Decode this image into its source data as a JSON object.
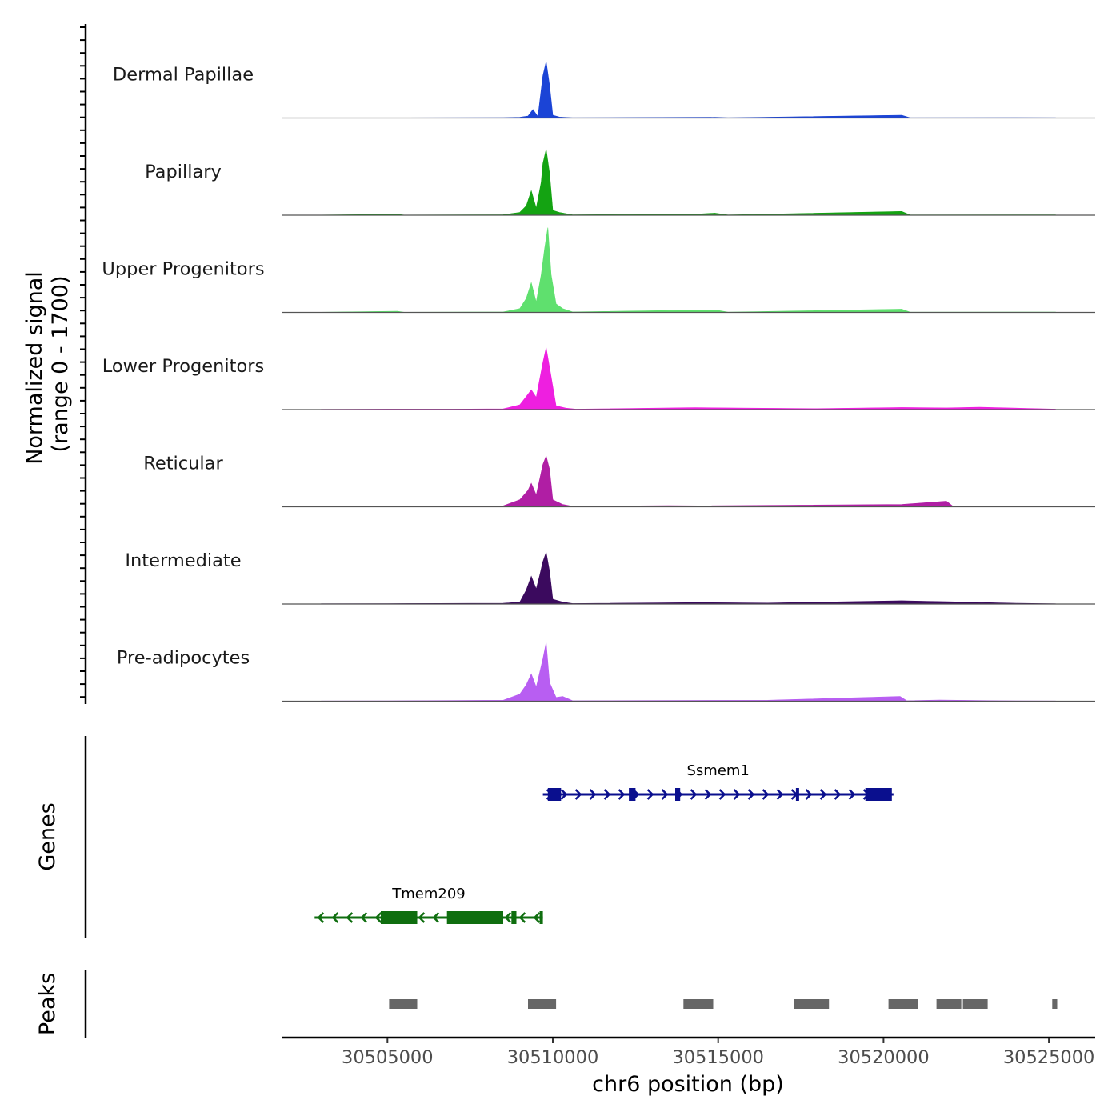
{
  "chart_data": {
    "type": "area",
    "title": "",
    "coverage": {
      "ylabel_line1": "Normalized signal",
      "ylabel_line2": "(range 0 - 1700)",
      "ylim": [
        0,
        1700
      ],
      "tracks": [
        {
          "name": "Dermal Papillae",
          "color": "#1b44d6",
          "points": [
            [
              30503000,
              2
            ],
            [
              30505000,
              3
            ],
            [
              30508500,
              8
            ],
            [
              30509000,
              15
            ],
            [
              30509250,
              40
            ],
            [
              30509400,
              180
            ],
            [
              30509550,
              30
            ],
            [
              30509700,
              900
            ],
            [
              30509800,
              1200
            ],
            [
              30509900,
              700
            ],
            [
              30510000,
              60
            ],
            [
              30510200,
              20
            ],
            [
              30510600,
              5
            ],
            [
              30514900,
              15
            ],
            [
              30515300,
              5
            ],
            [
              30520550,
              60
            ],
            [
              30520800,
              5
            ],
            [
              30524000,
              8
            ],
            [
              30525200,
              5
            ]
          ]
        },
        {
          "name": "Papillary",
          "color": "#14a312",
          "points": [
            [
              30503000,
              3
            ],
            [
              30505300,
              20
            ],
            [
              30505500,
              3
            ],
            [
              30508500,
              10
            ],
            [
              30509000,
              60
            ],
            [
              30509200,
              200
            ],
            [
              30509350,
              520
            ],
            [
              30509500,
              150
            ],
            [
              30509650,
              700
            ],
            [
              30509700,
              1100
            ],
            [
              30509800,
              1400
            ],
            [
              30509900,
              900
            ],
            [
              30510000,
              100
            ],
            [
              30510200,
              60
            ],
            [
              30510600,
              8
            ],
            [
              30514400,
              25
            ],
            [
              30514900,
              45
            ],
            [
              30515300,
              5
            ],
            [
              30520550,
              80
            ],
            [
              30520800,
              5
            ],
            [
              30525200,
              8
            ]
          ]
        },
        {
          "name": "Upper Progenitors",
          "color": "#5fe06e",
          "points": [
            [
              30503000,
              3
            ],
            [
              30505300,
              25
            ],
            [
              30505500,
              3
            ],
            [
              30508500,
              10
            ],
            [
              30509000,
              80
            ],
            [
              30509200,
              300
            ],
            [
              30509350,
              630
            ],
            [
              30509500,
              220
            ],
            [
              30509650,
              800
            ],
            [
              30509750,
              1350
            ],
            [
              30509850,
              1800
            ],
            [
              30509950,
              800
            ],
            [
              30510100,
              180
            ],
            [
              30510300,
              80
            ],
            [
              30510600,
              10
            ],
            [
              30514400,
              50
            ],
            [
              30514900,
              55
            ],
            [
              30515300,
              5
            ],
            [
              30520550,
              70
            ],
            [
              30520800,
              5
            ],
            [
              30525200,
              8
            ]
          ]
        },
        {
          "name": "Lower Progenitors",
          "color": "#ee1fe0",
          "points": [
            [
              30503000,
              5
            ],
            [
              30505000,
              10
            ],
            [
              30507000,
              10
            ],
            [
              30508500,
              15
            ],
            [
              30509000,
              100
            ],
            [
              30509200,
              280
            ],
            [
              30509350,
              420
            ],
            [
              30509500,
              260
            ],
            [
              30509700,
              1000
            ],
            [
              30509800,
              1320
            ],
            [
              30509950,
              700
            ],
            [
              30510100,
              80
            ],
            [
              30510400,
              30
            ],
            [
              30510700,
              10
            ],
            [
              30514300,
              40
            ],
            [
              30518000,
              20
            ],
            [
              30520550,
              45
            ],
            [
              30521900,
              35
            ],
            [
              30522900,
              50
            ],
            [
              30525200,
              10
            ]
          ]
        },
        {
          "name": "Reticular",
          "color": "#b01ea4",
          "points": [
            [
              30503000,
              5
            ],
            [
              30505000,
              8
            ],
            [
              30508500,
              20
            ],
            [
              30509000,
              150
            ],
            [
              30509250,
              350
            ],
            [
              30509350,
              500
            ],
            [
              30509500,
              250
            ],
            [
              30509700,
              900
            ],
            [
              30509800,
              1080
            ],
            [
              30509900,
              800
            ],
            [
              30510000,
              150
            ],
            [
              30510300,
              50
            ],
            [
              30510600,
              10
            ],
            [
              30513500,
              25
            ],
            [
              30514400,
              20
            ],
            [
              30520550,
              50
            ],
            [
              30521900,
              120
            ],
            [
              30522100,
              10
            ],
            [
              30524800,
              20
            ],
            [
              30525200,
              5
            ]
          ]
        },
        {
          "name": "Intermediate",
          "color": "#3b0a5e",
          "points": [
            [
              30503000,
              5
            ],
            [
              30505000,
              8
            ],
            [
              30508500,
              15
            ],
            [
              30509000,
              40
            ],
            [
              30509200,
              300
            ],
            [
              30509350,
              590
            ],
            [
              30509500,
              320
            ],
            [
              30509600,
              600
            ],
            [
              30509700,
              900
            ],
            [
              30509800,
              1100
            ],
            [
              30509900,
              700
            ],
            [
              30510000,
              100
            ],
            [
              30510300,
              40
            ],
            [
              30510600,
              10
            ],
            [
              30514400,
              30
            ],
            [
              30516500,
              20
            ],
            [
              30520550,
              70
            ],
            [
              30521900,
              50
            ],
            [
              30524000,
              15
            ],
            [
              30525200,
              5
            ]
          ]
        },
        {
          "name": "Pre-adipocytes",
          "color": "#b85ef2",
          "points": [
            [
              30503000,
              5
            ],
            [
              30505000,
              8
            ],
            [
              30508500,
              20
            ],
            [
              30509000,
              150
            ],
            [
              30509200,
              350
            ],
            [
              30509350,
              580
            ],
            [
              30509500,
              300
            ],
            [
              30509700,
              900
            ],
            [
              30509800,
              1250
            ],
            [
              30509900,
              400
            ],
            [
              30510100,
              80
            ],
            [
              30510300,
              100
            ],
            [
              30510600,
              10
            ],
            [
              30516500,
              20
            ],
            [
              30520500,
              100
            ],
            [
              30520700,
              10
            ],
            [
              30521700,
              25
            ],
            [
              30523500,
              10
            ],
            [
              30525200,
              5
            ]
          ]
        }
      ]
    },
    "genes": {
      "ylabel": "Genes",
      "items": [
        {
          "name": "Ssmem1",
          "strand": "+",
          "color": "#0a0f8e",
          "start": 30509700,
          "end": 30520300,
          "exons": [
            [
              30509850,
              30510250
            ],
            [
              30512300,
              30512500
            ],
            [
              30513700,
              30513850
            ],
            [
              30517350,
              30517430
            ],
            [
              30519450,
              30520250
            ]
          ]
        },
        {
          "name": "Tmem209",
          "strand": "-",
          "color": "#0f6e0f",
          "start": 30502800,
          "end": 30509700,
          "exons": [
            [
              30504800,
              30505900
            ],
            [
              30506800,
              30508500
            ],
            [
              30508750,
              30508900
            ],
            [
              30509600,
              30509700
            ]
          ]
        }
      ]
    },
    "peaks": {
      "ylabel": "Peaks",
      "color": "#666666",
      "regions": [
        [
          30505050,
          30505900
        ],
        [
          30509250,
          30510100
        ],
        [
          30513950,
          30514850
        ],
        [
          30517300,
          30518350
        ],
        [
          30520150,
          30521050
        ],
        [
          30521600,
          30522350
        ],
        [
          30522400,
          30523150
        ],
        [
          30525100,
          30525250
        ]
      ]
    },
    "x": {
      "xlabel": "chr6 position (bp)",
      "xlim": [
        30501800,
        30526400
      ],
      "ticks": [
        30505000,
        30510000,
        30515000,
        30520000,
        30525000
      ],
      "tick_labels": [
        "30505000",
        "30510000",
        "30515000",
        "30520000",
        "30525000"
      ]
    }
  }
}
